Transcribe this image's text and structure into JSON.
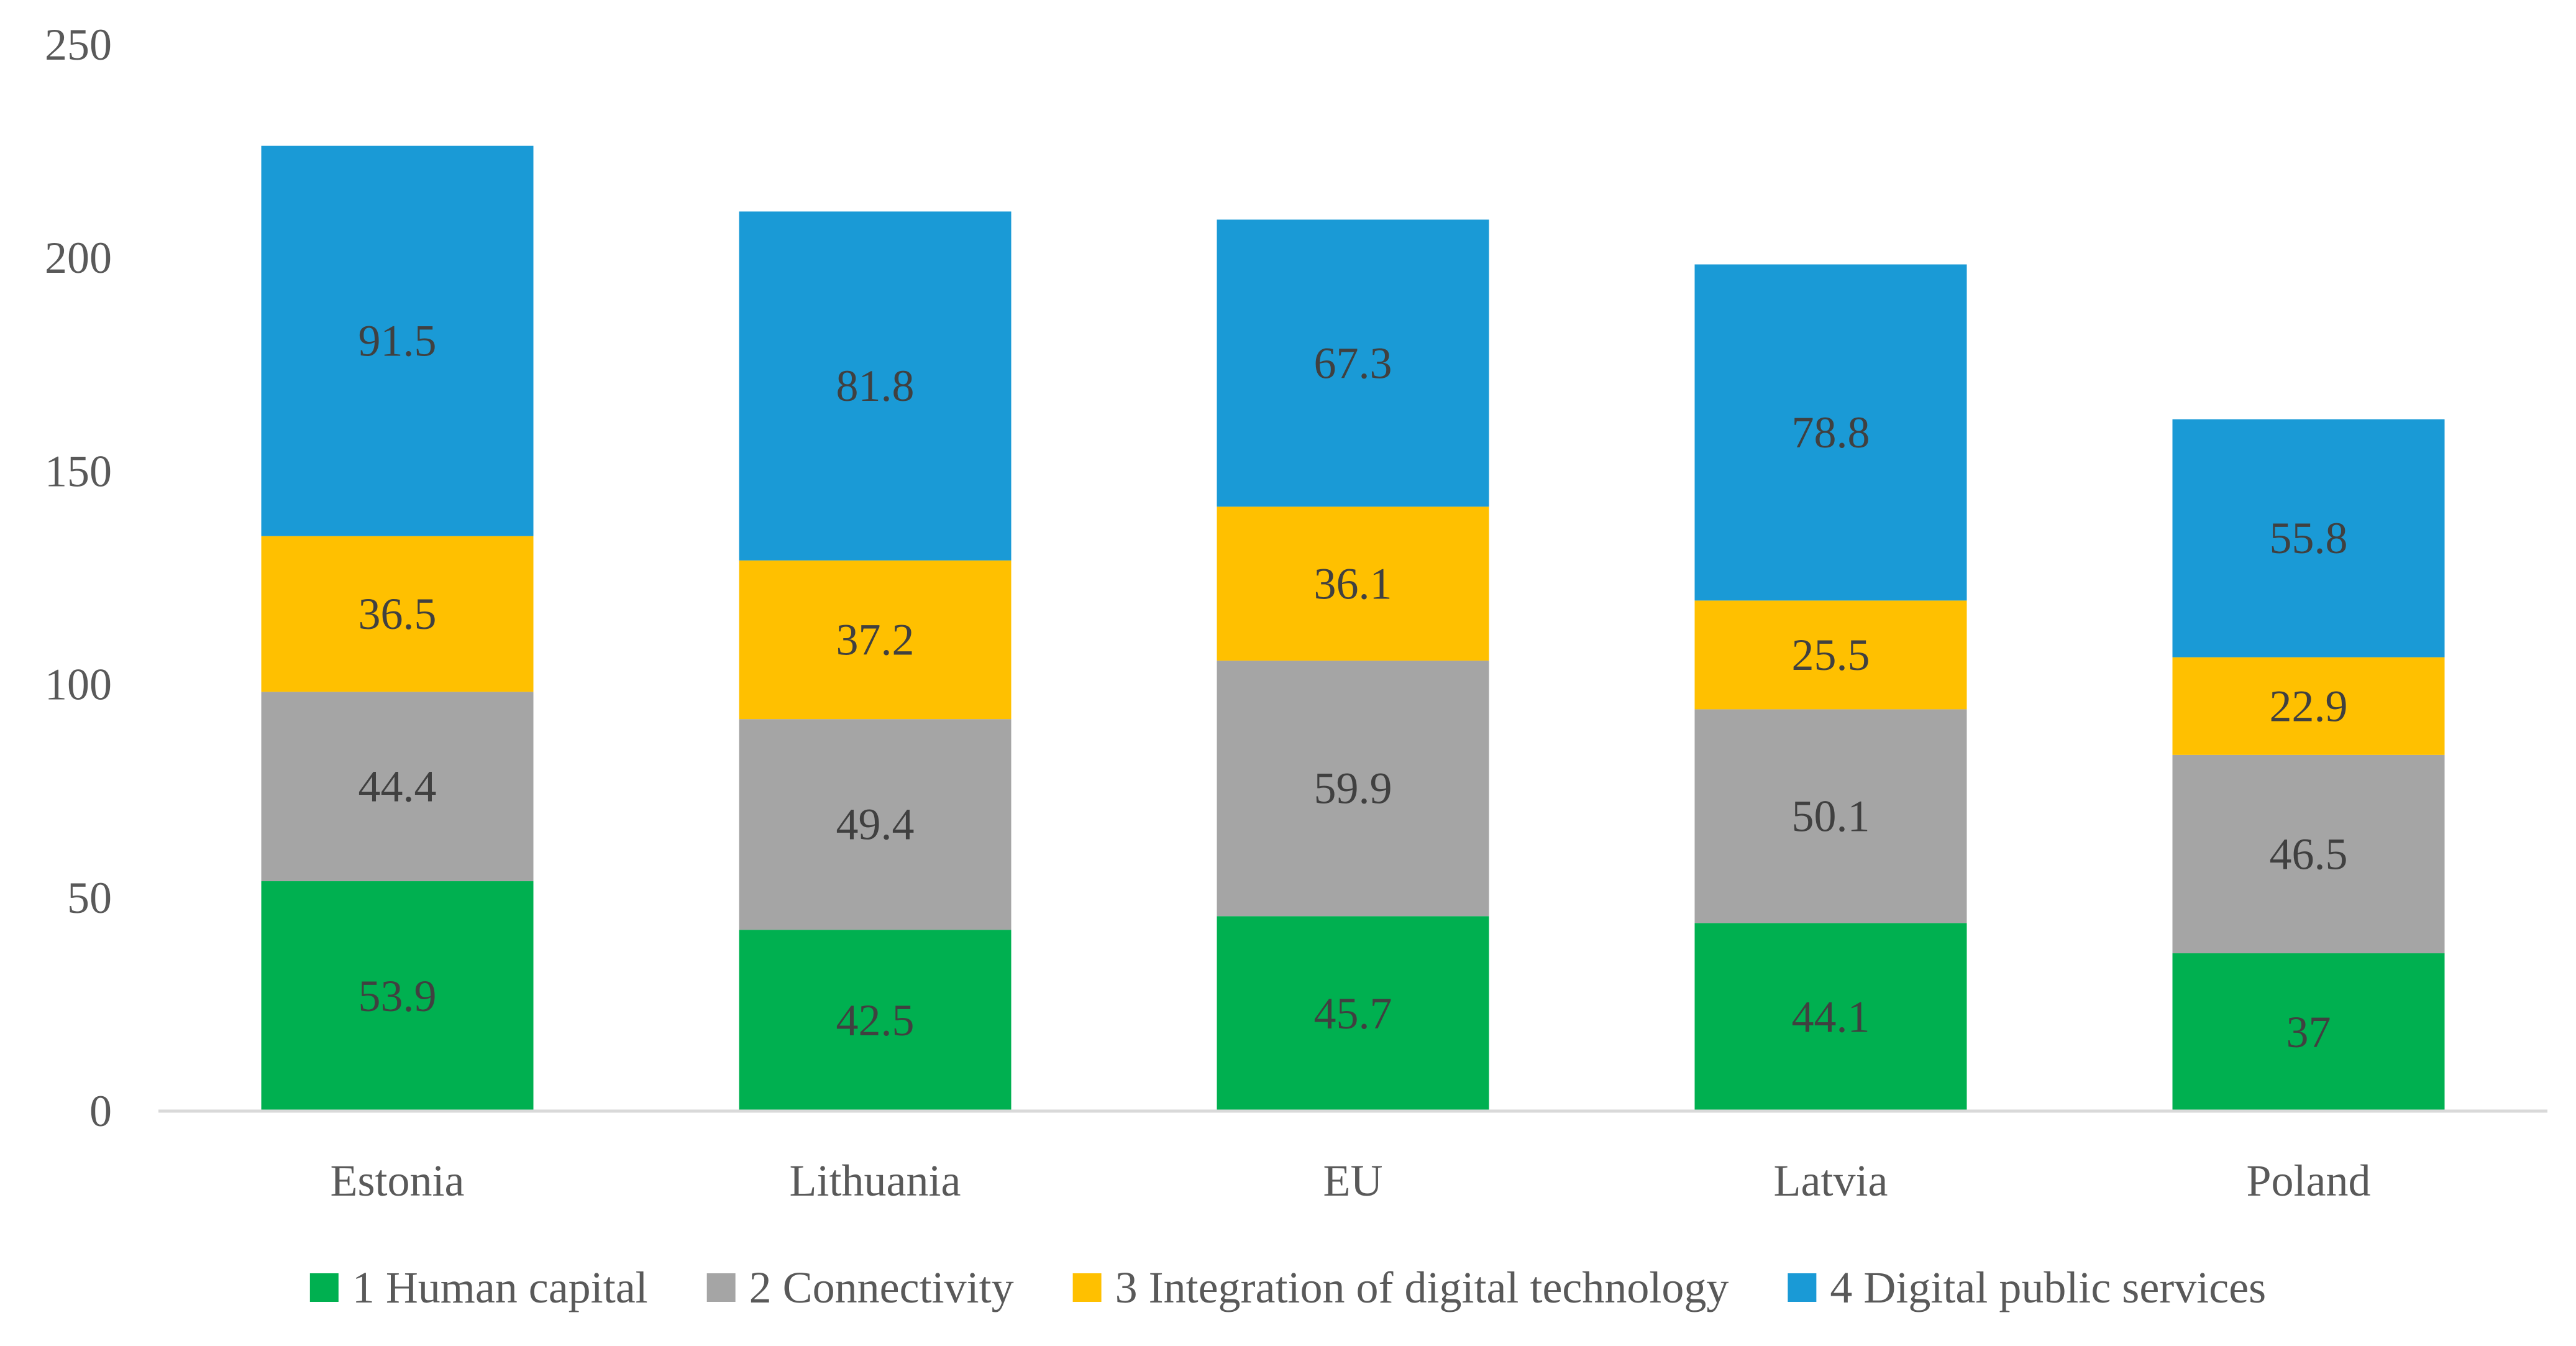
{
  "chart_data": {
    "type": "bar",
    "stacked": true,
    "title": "",
    "xlabel": "",
    "ylabel": "",
    "ylim": [
      0,
      250
    ],
    "yticks": [
      0,
      50,
      100,
      150,
      200,
      250
    ],
    "grid": false,
    "legend_position": "bottom",
    "categories": [
      "Estonia",
      "Lithuania",
      "EU",
      "Latvia",
      "Poland"
    ],
    "series": [
      {
        "name": "1 Human capital",
        "color": "#00b050",
        "values": [
          53.9,
          42.5,
          45.7,
          44.1,
          37
        ]
      },
      {
        "name": "2 Connectivity",
        "color": "#a5a5a5",
        "values": [
          44.4,
          49.4,
          59.9,
          50.1,
          46.5
        ]
      },
      {
        "name": "3 Integration of digital technology",
        "color": "#ffc000",
        "values": [
          36.5,
          37.2,
          36.1,
          25.5,
          22.9
        ]
      },
      {
        "name": "4 Digital public services",
        "color": "#1a9ad6",
        "values": [
          91.5,
          81.8,
          67.3,
          78.8,
          55.8
        ]
      }
    ]
  }
}
